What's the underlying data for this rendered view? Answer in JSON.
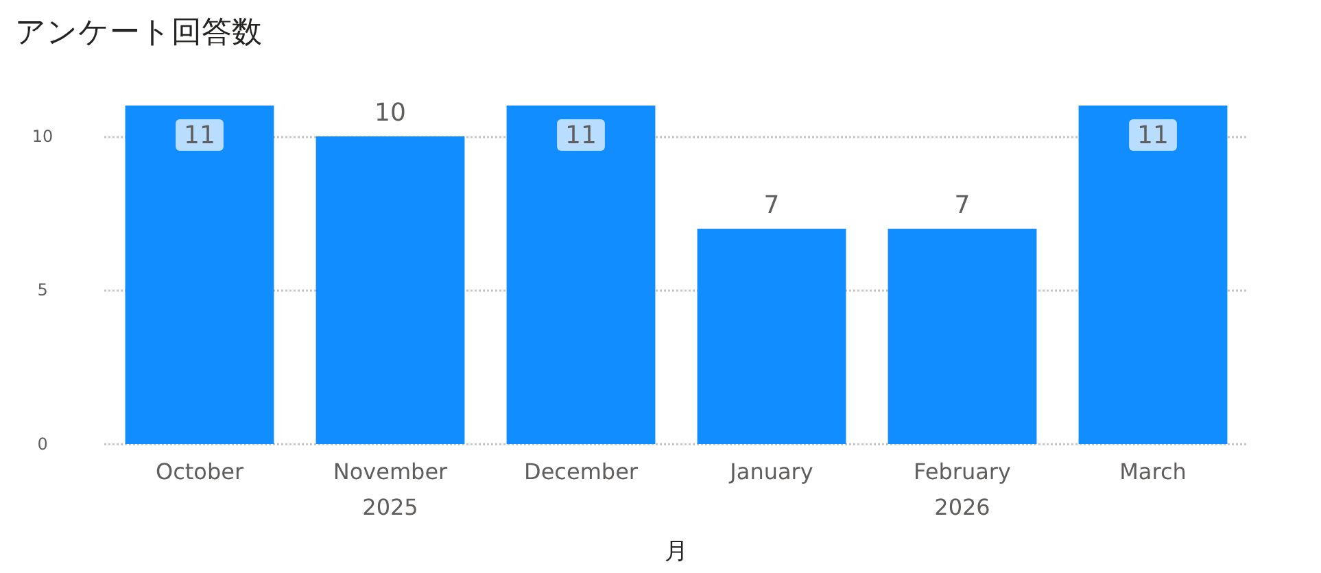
{
  "chart_data": {
    "type": "bar",
    "title": "アンケート回答数",
    "xlabel": "月",
    "categories": [
      "October",
      "November",
      "December",
      "January",
      "February",
      "March"
    ],
    "values": [
      11,
      10,
      11,
      7,
      7,
      11
    ],
    "color": "#118dff",
    "ylim": [
      0,
      11
    ],
    "yticks": [
      0,
      5,
      10
    ],
    "grid": "y",
    "data_labels": true,
    "annotations": [
      "2025",
      "2026"
    ]
  }
}
